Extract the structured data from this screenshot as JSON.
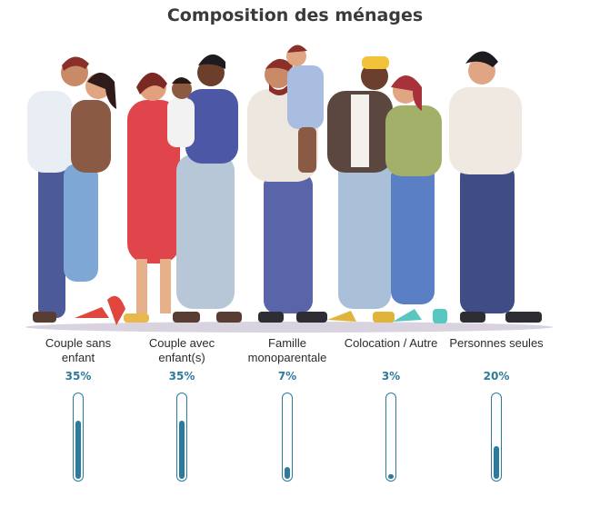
{
  "title": "Composition des ménages",
  "colors": {
    "accent": "#2c7a9c",
    "title": "#3a3a3a",
    "ground": "#cfc9d6"
  },
  "chart_data": {
    "type": "bar",
    "title": "Composition des ménages",
    "categories": [
      "Couple sans\nenfant",
      "Couple avec\nenfant(s)",
      "Famille\nmonoparentale",
      "Colocation / Autre",
      "Personnes seules"
    ],
    "values": [
      35,
      35,
      7,
      3,
      20
    ],
    "value_labels": [
      "35%",
      "35%",
      "7%",
      "3%",
      "20%"
    ],
    "ylim": [
      0,
      50
    ],
    "grid": false,
    "legend": "none"
  },
  "illustration": {
    "description_icon": "people-group-illustration"
  }
}
